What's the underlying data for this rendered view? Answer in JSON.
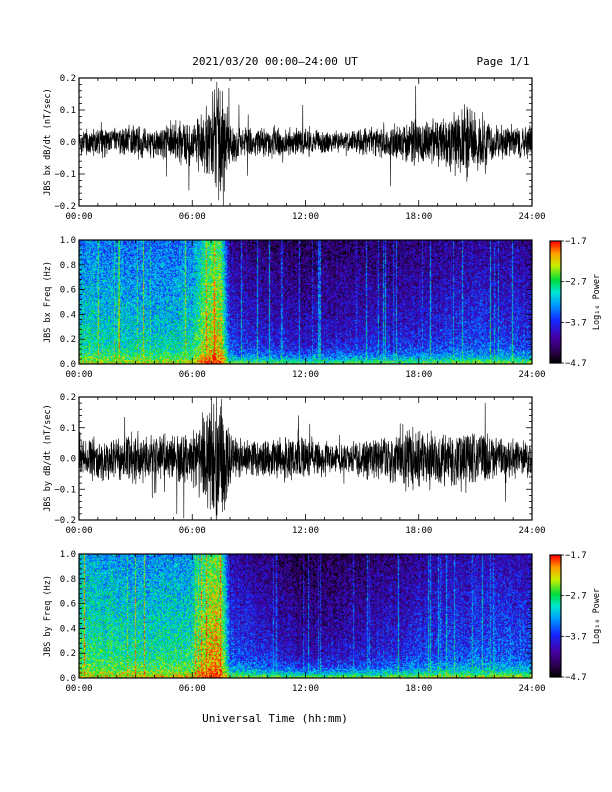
{
  "header": {
    "title": "2021/03/20  00:00–24:00 UT",
    "page": "Page 1/1"
  },
  "footer": {
    "xlabel": "Universal Time (hh:mm)"
  },
  "chart_data": [
    {
      "type": "line",
      "ylabel": "JBS bx dB/dt (nT/sec)",
      "x_ticks": [
        "00:00",
        "06:00",
        "12:00",
        "18:00",
        "24:00"
      ],
      "xlim": [
        "00:00",
        "24:00"
      ],
      "y_ticks": [
        "0.2",
        "0.1",
        "0.0",
        "−0.1",
        "−0.2"
      ],
      "ylim": [
        -0.2,
        0.2
      ],
      "series": [
        {
          "x_hours": [
            0,
            1,
            2,
            3,
            4,
            5,
            6,
            6.5,
            7,
            7.3,
            7.5,
            7.8,
            8,
            8.5,
            9,
            10,
            11,
            12,
            13,
            14,
            15,
            16,
            17,
            18,
            19,
            20,
            20.5,
            21,
            21.5,
            22,
            23,
            24
          ],
          "amplitude": [
            0.04,
            0.045,
            0.04,
            0.05,
            0.045,
            0.06,
            0.07,
            0.09,
            0.14,
            0.2,
            0.19,
            0.12,
            0.07,
            0.05,
            0.04,
            0.05,
            0.04,
            0.05,
            0.035,
            0.03,
            0.04,
            0.05,
            0.06,
            0.07,
            0.065,
            0.1,
            0.12,
            0.09,
            0.08,
            0.06,
            0.05,
            0.045
          ]
        }
      ]
    },
    {
      "type": "heatmap",
      "ylabel": "JBS bx Freq (Hz)",
      "x_ticks": [
        "00:00",
        "06:00",
        "12:00",
        "18:00",
        "24:00"
      ],
      "xlim": [
        "00:00",
        "24:00"
      ],
      "y_ticks": [
        "1.0",
        "0.8",
        "0.6",
        "0.4",
        "0.2",
        "0.0"
      ],
      "ylim": [
        0,
        1.0
      ],
      "colorbar": {
        "label": "Log₁₀ Power",
        "ticks": [
          "−1.7",
          "−2.7",
          "−3.7",
          "−4.7"
        ],
        "range": [
          -4.7,
          -1.7
        ]
      },
      "activity_hours": [
        0,
        3,
        6,
        6.5,
        7,
        7.5,
        8,
        10,
        12,
        15,
        18,
        21,
        24
      ],
      "activity_level": [
        0.62,
        0.58,
        0.62,
        0.75,
        0.85,
        0.85,
        0.35,
        0.3,
        0.28,
        0.3,
        0.32,
        0.38,
        0.35
      ],
      "low_freq_level": [
        0.8,
        0.8,
        0.85,
        0.95,
        1.0,
        1.0,
        0.75,
        0.72,
        0.7,
        0.72,
        0.74,
        0.78,
        0.76
      ]
    },
    {
      "type": "line",
      "ylabel": "JBS by dB/dt (nT/sec)",
      "x_ticks": [
        "00:00",
        "06:00",
        "12:00",
        "18:00",
        "24:00"
      ],
      "xlim": [
        "00:00",
        "24:00"
      ],
      "y_ticks": [
        "0.2",
        "0.1",
        "0.0",
        "−0.1",
        "−0.2"
      ],
      "ylim": [
        -0.2,
        0.2
      ],
      "series": [
        {
          "x_hours": [
            0,
            1,
            2,
            3,
            4,
            5,
            6,
            6.5,
            7,
            7.3,
            7.5,
            7.8,
            8,
            8.5,
            9,
            10,
            11,
            12,
            13,
            14,
            15,
            16,
            17,
            18,
            19,
            20,
            20.5,
            21,
            21.5,
            22,
            23,
            24
          ],
          "amplitude": [
            0.06,
            0.07,
            0.065,
            0.08,
            0.075,
            0.08,
            0.1,
            0.13,
            0.19,
            0.2,
            0.2,
            0.16,
            0.08,
            0.06,
            0.06,
            0.06,
            0.07,
            0.07,
            0.055,
            0.05,
            0.06,
            0.07,
            0.08,
            0.1,
            0.08,
            0.09,
            0.1,
            0.09,
            0.08,
            0.07,
            0.06,
            0.06
          ]
        }
      ]
    },
    {
      "type": "heatmap",
      "ylabel": "JBS by Freq (Hz)",
      "x_ticks": [
        "00:00",
        "06:00",
        "12:00",
        "18:00",
        "24:00"
      ],
      "xlim": [
        "00:00",
        "24:00"
      ],
      "y_ticks": [
        "1.0",
        "0.8",
        "0.6",
        "0.4",
        "0.2",
        "0.0"
      ],
      "ylim": [
        0,
        1.0
      ],
      "colorbar": {
        "label": "Log₁₀ Power",
        "ticks": [
          "−1.7",
          "−2.7",
          "−3.7",
          "−4.7"
        ],
        "range": [
          -4.7,
          -1.7
        ]
      },
      "activity_hours": [
        0,
        3,
        6,
        6.5,
        7,
        7.5,
        8,
        10,
        12,
        15,
        18,
        21,
        24
      ],
      "activity_level": [
        0.68,
        0.64,
        0.66,
        0.8,
        0.9,
        0.9,
        0.4,
        0.33,
        0.25,
        0.3,
        0.36,
        0.42,
        0.4
      ],
      "low_freq_level": [
        0.85,
        0.85,
        0.88,
        0.95,
        1.0,
        1.0,
        0.8,
        0.75,
        0.72,
        0.74,
        0.78,
        0.82,
        0.8
      ]
    }
  ]
}
